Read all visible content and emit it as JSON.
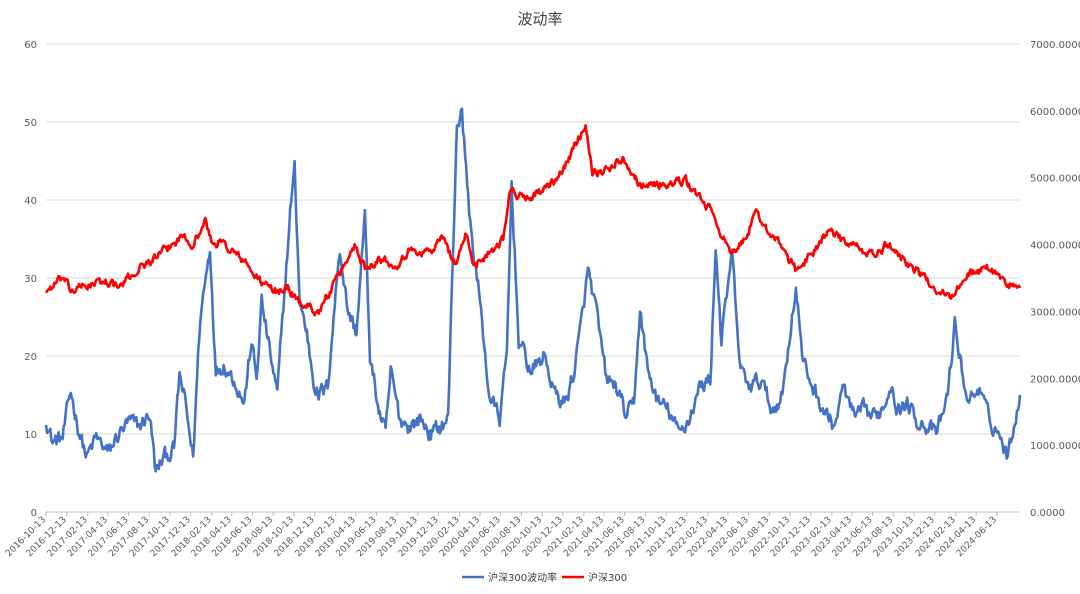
{
  "chart_data": {
    "type": "line",
    "title": "波动率",
    "y_left": {
      "min": 0,
      "max": 60,
      "ticks": [
        "0",
        "10",
        "20",
        "30",
        "40",
        "50",
        "60"
      ]
    },
    "y_right": {
      "min": 0,
      "max": 7000,
      "ticks": [
        "0.0000",
        "1000.0000",
        "2000.0000",
        "3000.0000",
        "4000.0000",
        "5000.0000",
        "6000.0000",
        "7000.0000"
      ]
    },
    "x_range": [
      "2016-10-13",
      "2024-08-20"
    ],
    "x_tick_labels": [
      "2016-10-13",
      "2016-12-13",
      "2017-02-13",
      "2017-04-13",
      "2017-06-13",
      "2017-08-13",
      "2017-10-13",
      "2017-12-13",
      "2018-02-13",
      "2018-04-13",
      "2018-06-13",
      "2018-08-13",
      "2018-10-13",
      "2018-12-13",
      "2019-02-13",
      "2019-04-13",
      "2019-06-13",
      "2019-08-13",
      "2019-10-13",
      "2019-12-13",
      "2020-02-13",
      "2020-04-13",
      "2020-06-13",
      "2020-08-13",
      "2020-10-13",
      "2020-12-13",
      "2021-02-13",
      "2021-04-13",
      "2021-06-13",
      "2021-08-13",
      "2021-10-13",
      "2021-12-13",
      "2022-02-13",
      "2022-04-13",
      "2022-06-13",
      "2022-08-13",
      "2022-10-13",
      "2022-12-13",
      "2023-02-13",
      "2023-04-13",
      "2023-06-13",
      "2023-08-13",
      "2023-10-13",
      "2023-12-13",
      "2024-02-13",
      "2024-04-13",
      "2024-06-13"
    ],
    "grid": true,
    "legend_position": "bottom",
    "series": [
      {
        "name": "沪深300波动率",
        "axis": "left",
        "color": "#4472C4",
        "points": [
          [
            "2016-10-13",
            12
          ],
          [
            "2016-11-01",
            9
          ],
          [
            "2016-12-01",
            9.5
          ],
          [
            "2016-12-25",
            15.5
          ],
          [
            "2017-01-15",
            11
          ],
          [
            "2017-02-10",
            7
          ],
          [
            "2017-03-10",
            9.5
          ],
          [
            "2017-04-15",
            7.5
          ],
          [
            "2017-05-15",
            10
          ],
          [
            "2017-06-15",
            11.5
          ],
          [
            "2017-07-15",
            11
          ],
          [
            "2017-08-15",
            12.5
          ],
          [
            "2017-09-01",
            5
          ],
          [
            "2017-09-25",
            7
          ],
          [
            "2017-10-25",
            8
          ],
          [
            "2017-11-10",
            17.5
          ],
          [
            "2017-11-25",
            14.5
          ],
          [
            "2017-12-20",
            7
          ],
          [
            "2018-01-10",
            25
          ],
          [
            "2018-02-08",
            34
          ],
          [
            "2018-02-25",
            18
          ],
          [
            "2018-03-20",
            19
          ],
          [
            "2018-04-20",
            17
          ],
          [
            "2018-05-20",
            14
          ],
          [
            "2018-06-10",
            22
          ],
          [
            "2018-06-25",
            17
          ],
          [
            "2018-07-10",
            27
          ],
          [
            "2018-08-05",
            20
          ],
          [
            "2018-08-25",
            15
          ],
          [
            "2018-09-15",
            28
          ],
          [
            "2018-10-05",
            40
          ],
          [
            "2018-10-15",
            44
          ],
          [
            "2018-10-30",
            27
          ],
          [
            "2018-11-20",
            23
          ],
          [
            "2018-12-10",
            17
          ],
          [
            "2018-12-25",
            15
          ],
          [
            "2019-01-20",
            16
          ],
          [
            "2019-02-25",
            34
          ],
          [
            "2019-03-20",
            26
          ],
          [
            "2019-04-15",
            23
          ],
          [
            "2019-05-10",
            38
          ],
          [
            "2019-05-25",
            20
          ],
          [
            "2019-06-20",
            13
          ],
          [
            "2019-07-10",
            10
          ],
          [
            "2019-07-25",
            18
          ],
          [
            "2019-08-20",
            12
          ],
          [
            "2019-09-20",
            11
          ],
          [
            "2019-10-20",
            12
          ],
          [
            "2019-11-20",
            10
          ],
          [
            "2019-12-20",
            11
          ],
          [
            "2020-01-10",
            12
          ],
          [
            "2020-02-05",
            50
          ],
          [
            "2020-02-20",
            51
          ],
          [
            "2020-03-15",
            37
          ],
          [
            "2020-04-10",
            28
          ],
          [
            "2020-05-10",
            15
          ],
          [
            "2020-06-10",
            12
          ],
          [
            "2020-07-01",
            20
          ],
          [
            "2020-07-15",
            42
          ],
          [
            "2020-08-05",
            22
          ],
          [
            "2020-09-10",
            18
          ],
          [
            "2020-10-20",
            20
          ],
          [
            "2020-11-20",
            15
          ],
          [
            "2020-12-20",
            14
          ],
          [
            "2021-01-15",
            18
          ],
          [
            "2021-02-05",
            24
          ],
          [
            "2021-02-25",
            31
          ],
          [
            "2021-03-20",
            26
          ],
          [
            "2021-04-20",
            17
          ],
          [
            "2021-05-20",
            16
          ],
          [
            "2021-06-20",
            12
          ],
          [
            "2021-07-10",
            14
          ],
          [
            "2021-07-28",
            26
          ],
          [
            "2021-08-20",
            18
          ],
          [
            "2021-09-20",
            14
          ],
          [
            "2021-10-20",
            13
          ],
          [
            "2021-11-20",
            10
          ],
          [
            "2021-12-20",
            12
          ],
          [
            "2022-01-20",
            16
          ],
          [
            "2022-02-20",
            17
          ],
          [
            "2022-03-08",
            34
          ],
          [
            "2022-03-25",
            22
          ],
          [
            "2022-04-25",
            33
          ],
          [
            "2022-05-20",
            18
          ],
          [
            "2022-06-20",
            16
          ],
          [
            "2022-07-20",
            17
          ],
          [
            "2022-08-20",
            13
          ],
          [
            "2022-09-20",
            15
          ],
          [
            "2022-10-10",
            22
          ],
          [
            "2022-10-30",
            29
          ],
          [
            "2022-11-20",
            19
          ],
          [
            "2022-12-20",
            16
          ],
          [
            "2023-01-20",
            13
          ],
          [
            "2023-02-20",
            11
          ],
          [
            "2023-03-20",
            16
          ],
          [
            "2023-04-20",
            12
          ],
          [
            "2023-05-20",
            13
          ],
          [
            "2023-06-20",
            12
          ],
          [
            "2023-07-20",
            14
          ],
          [
            "2023-08-10",
            17
          ],
          [
            "2023-08-25",
            13
          ],
          [
            "2023-09-20",
            14
          ],
          [
            "2023-10-20",
            12
          ],
          [
            "2023-11-20",
            11
          ],
          [
            "2023-12-20",
            10
          ],
          [
            "2024-01-20",
            15
          ],
          [
            "2024-02-10",
            24
          ],
          [
            "2024-02-28",
            19
          ],
          [
            "2024-03-20",
            14
          ],
          [
            "2024-04-20",
            16
          ],
          [
            "2024-05-20",
            12
          ],
          [
            "2024-06-20",
            10
          ],
          [
            "2024-07-15",
            7
          ],
          [
            "2024-08-05",
            12
          ],
          [
            "2024-08-20",
            15
          ]
        ]
      },
      {
        "name": "沪深300",
        "axis": "right",
        "color": "#FF0000",
        "points": [
          [
            "2016-10-13",
            3300
          ],
          [
            "2016-12-01",
            3500
          ],
          [
            "2016-12-25",
            3300
          ],
          [
            "2017-02-15",
            3400
          ],
          [
            "2017-04-15",
            3450
          ],
          [
            "2017-05-15",
            3350
          ],
          [
            "2017-07-15",
            3650
          ],
          [
            "2017-09-15",
            3850
          ],
          [
            "2017-11-25",
            4150
          ],
          [
            "2017-12-20",
            4000
          ],
          [
            "2018-01-25",
            4350
          ],
          [
            "2018-02-15",
            4000
          ],
          [
            "2018-03-10",
            4050
          ],
          [
            "2018-05-20",
            3750
          ],
          [
            "2018-06-25",
            3500
          ],
          [
            "2018-08-15",
            3300
          ],
          [
            "2018-09-25",
            3350
          ],
          [
            "2018-10-25",
            3150
          ],
          [
            "2018-12-25",
            3000
          ],
          [
            "2019-02-20",
            3500
          ],
          [
            "2019-04-10",
            4000
          ],
          [
            "2019-05-10",
            3650
          ],
          [
            "2019-06-20",
            3800
          ],
          [
            "2019-08-10",
            3700
          ],
          [
            "2019-09-15",
            3900
          ],
          [
            "2019-11-20",
            3900
          ],
          [
            "2019-12-25",
            4100
          ],
          [
            "2020-02-01",
            3700
          ],
          [
            "2020-03-01",
            4150
          ],
          [
            "2020-03-25",
            3700
          ],
          [
            "2020-05-15",
            3900
          ],
          [
            "2020-06-20",
            4100
          ],
          [
            "2020-07-10",
            4800
          ],
          [
            "2020-08-20",
            4700
          ],
          [
            "2020-10-15",
            4800
          ],
          [
            "2020-11-25",
            4950
          ],
          [
            "2020-12-31",
            5300
          ],
          [
            "2021-02-18",
            5800
          ],
          [
            "2021-03-10",
            5100
          ],
          [
            "2021-04-15",
            5100
          ],
          [
            "2021-06-10",
            5300
          ],
          [
            "2021-07-28",
            4900
          ],
          [
            "2021-09-10",
            4900
          ],
          [
            "2021-10-20",
            4900
          ],
          [
            "2021-12-10",
            4950
          ],
          [
            "2022-01-20",
            4700
          ],
          [
            "2022-03-01",
            4450
          ],
          [
            "2022-04-25",
            3800
          ],
          [
            "2022-06-01",
            4100
          ],
          [
            "2022-07-05",
            4450
          ],
          [
            "2022-08-20",
            4150
          ],
          [
            "2022-09-20",
            3950
          ],
          [
            "2022-10-31",
            3600
          ],
          [
            "2022-12-20",
            3900
          ],
          [
            "2023-01-31",
            4200
          ],
          [
            "2023-03-20",
            4050
          ],
          [
            "2023-05-15",
            3900
          ],
          [
            "2023-06-20",
            3850
          ],
          [
            "2023-07-31",
            4000
          ],
          [
            "2023-09-20",
            3750
          ],
          [
            "2023-10-31",
            3550
          ],
          [
            "2023-12-15",
            3350
          ],
          [
            "2024-02-05",
            3200
          ],
          [
            "2024-03-10",
            3550
          ],
          [
            "2024-05-20",
            3650
          ],
          [
            "2024-07-05",
            3450
          ],
          [
            "2024-07-25",
            3400
          ],
          [
            "2024-08-20",
            3350
          ]
        ]
      }
    ]
  }
}
